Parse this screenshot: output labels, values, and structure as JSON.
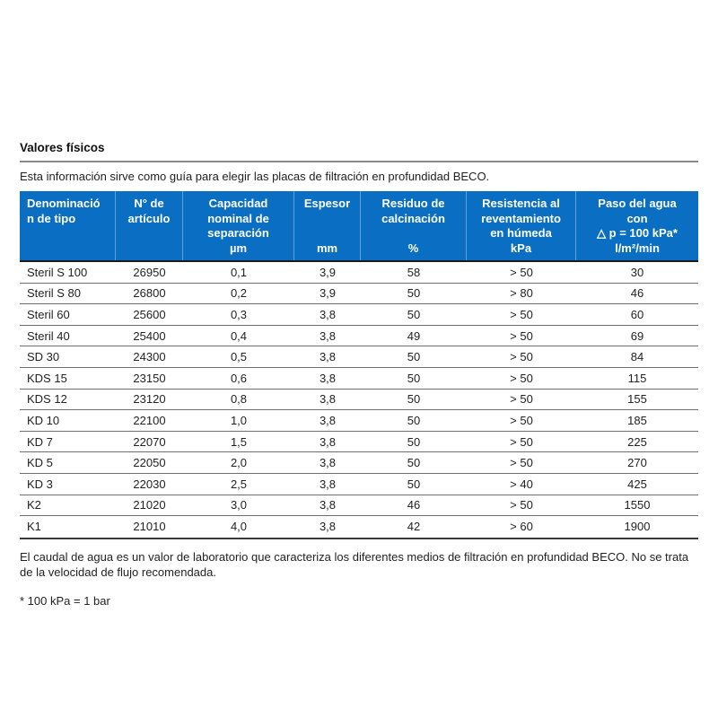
{
  "page": {
    "title": "Valores físicos",
    "intro": "Esta información sirve como guía para elegir las placas de filtración en profundidad BECO.",
    "footnote": "El caudal de agua es un valor de laboratorio que caracteriza los diferentes medios de filtración en profundidad BECO. No se trata de la velocidad de flujo recomendada.",
    "kpa_note": "* 100 kPa = 1 bar"
  },
  "colors": {
    "header_bg": "#0a6fc2",
    "header_text": "#ffffff",
    "row_divider": "#6e6e6e",
    "strong_divider": "#1a1a1a",
    "title_rule": "#8a8a8a"
  },
  "table": {
    "columns": [
      {
        "label": "Denominación de tipo",
        "unit": ""
      },
      {
        "label": "N° de\nartículo",
        "unit": ""
      },
      {
        "label": "Capacidad\nnominal de\nseparación",
        "unit": "µm"
      },
      {
        "label": "Espesor",
        "unit": "mm"
      },
      {
        "label": "Residuo de\ncalcinación",
        "unit": "%"
      },
      {
        "label": "Resistencia al\nreventamiento\nen húmeda",
        "unit": "kPa"
      },
      {
        "label": "Paso del agua\ncon\n△ p = 100 kPa*",
        "unit": "l/m²/min"
      }
    ],
    "rows": [
      [
        "Steril S 100",
        "26950",
        "0,1",
        "3,9",
        "58",
        "> 50",
        "30"
      ],
      [
        "Steril S 80",
        "26800",
        "0,2",
        "3,9",
        "50",
        "> 80",
        "46"
      ],
      [
        "Steril 60",
        "25600",
        "0,3",
        "3,8",
        "50",
        "> 50",
        "60"
      ],
      [
        "Steril 40",
        "25400",
        "0,4",
        "3,8",
        "49",
        "> 50",
        "69"
      ],
      [
        "SD 30",
        "24300",
        "0,5",
        "3,8",
        "50",
        "> 50",
        "84"
      ],
      [
        "KDS 15",
        "23150",
        "0,6",
        "3,8",
        "50",
        "> 50",
        "115"
      ],
      [
        "KDS 12",
        "23120",
        "0,8",
        "3,8",
        "50",
        "> 50",
        "155"
      ],
      [
        "KD 10",
        "22100",
        "1,0",
        "3,8",
        "50",
        "> 50",
        "185"
      ],
      [
        "KD 7",
        "22070",
        "1,5",
        "3,8",
        "50",
        "> 50",
        "225"
      ],
      [
        "KD 5",
        "22050",
        "2,0",
        "3,8",
        "50",
        "> 50",
        "270"
      ],
      [
        "KD 3",
        "22030",
        "2,5",
        "3,8",
        "50",
        "> 40",
        "425"
      ],
      [
        "K2",
        "21020",
        "3,0",
        "3,8",
        "46",
        "> 50",
        "1550"
      ],
      [
        "K1",
        "21010",
        "4,0",
        "3,8",
        "42",
        "> 60",
        "1900"
      ]
    ]
  }
}
